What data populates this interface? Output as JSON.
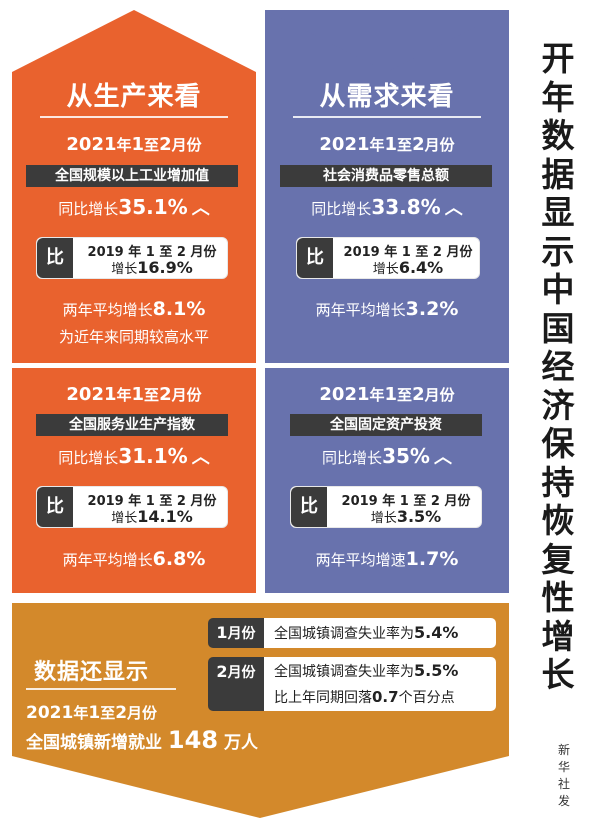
{
  "colors": {
    "orange": "#e9622e",
    "blue": "#6872ad",
    "gold": "#d3892b",
    "dark": "#3b3b3b"
  },
  "side_title": [
    "开",
    "年",
    "数",
    "据",
    "显",
    "示",
    "中",
    "国",
    "经",
    "济",
    "保",
    "持",
    "恢",
    "复",
    "性",
    "增",
    "长"
  ],
  "source": [
    "新",
    "华",
    "社",
    "发"
  ],
  "left": {
    "heading": "从生产来看",
    "top": {
      "period_year": "2021",
      "period_mid": "年",
      "period_m1": "1",
      "period_to": "至",
      "period_m2": "2",
      "period_end": "月份",
      "indicator": "全国规模以上工业增加值",
      "growth_prefix": "同比增长",
      "growth_value": "35.1%",
      "compare_char": "比",
      "compare_period": "2019 年 1 至 2 月份",
      "compare_prefix": "增长",
      "compare_value": "16.9%",
      "avg_prefix": "两年平均增长",
      "avg_value": "8.1%",
      "note": "为近年来同期较高水平"
    },
    "bottom": {
      "period_year": "2021",
      "period_mid": "年",
      "period_m1": "1",
      "period_to": "至",
      "period_m2": "2",
      "period_end": "月份",
      "indicator": "全国服务业生产指数",
      "growth_prefix": "同比增长",
      "growth_value": "31.1%",
      "compare_char": "比",
      "compare_period": "2019 年 1 至 2 月份",
      "compare_prefix": "增长",
      "compare_value": "14.1%",
      "avg_prefix": "两年平均增长",
      "avg_value": "6.8%"
    }
  },
  "right": {
    "heading": "从需求来看",
    "top": {
      "period_year": "2021",
      "period_mid": "年",
      "period_m1": "1",
      "period_to": "至",
      "period_m2": "2",
      "period_end": "月份",
      "indicator": "社会消费品零售总额",
      "growth_prefix": "同比增长",
      "growth_value": "33.8%",
      "compare_char": "比",
      "compare_period": "2019 年 1 至 2 月份",
      "compare_prefix": "增长",
      "compare_value": "6.4%",
      "avg_prefix": "两年平均增长",
      "avg_value": "3.2%"
    },
    "bottom": {
      "period_year": "2021",
      "period_mid": "年",
      "period_m1": "1",
      "period_to": "至",
      "period_m2": "2",
      "period_end": "月份",
      "indicator": "全国固定资产投资",
      "growth_prefix": "同比增长",
      "growth_value": "35%",
      "compare_char": "比",
      "compare_period": "2019 年 1 至 2 月份",
      "compare_prefix": "增长",
      "compare_value": "3.5%",
      "avg_prefix": "两年平均增速",
      "avg_value": "1.7%"
    }
  },
  "bottom": {
    "heading": "数据还显示",
    "period_year": "2021",
    "period_mid": "年",
    "period_m1": "1",
    "period_to": "至",
    "period_m2": "2",
    "period_end": "月份",
    "jobs_prefix": "全国城镇新增就业",
    "jobs_value": "148",
    "jobs_unit": "万人",
    "jan": {
      "month_num": "1",
      "month_suffix": "月份",
      "text": "全国城镇调查失业率为",
      "value": "5.4%"
    },
    "feb": {
      "month_num": "2",
      "month_suffix": "月份",
      "text": "全国城镇调查失业率为",
      "value": "5.5%",
      "text2_prefix": "比上年同期回落",
      "text2_value": "0.7",
      "text2_suffix": "个百分点"
    }
  }
}
